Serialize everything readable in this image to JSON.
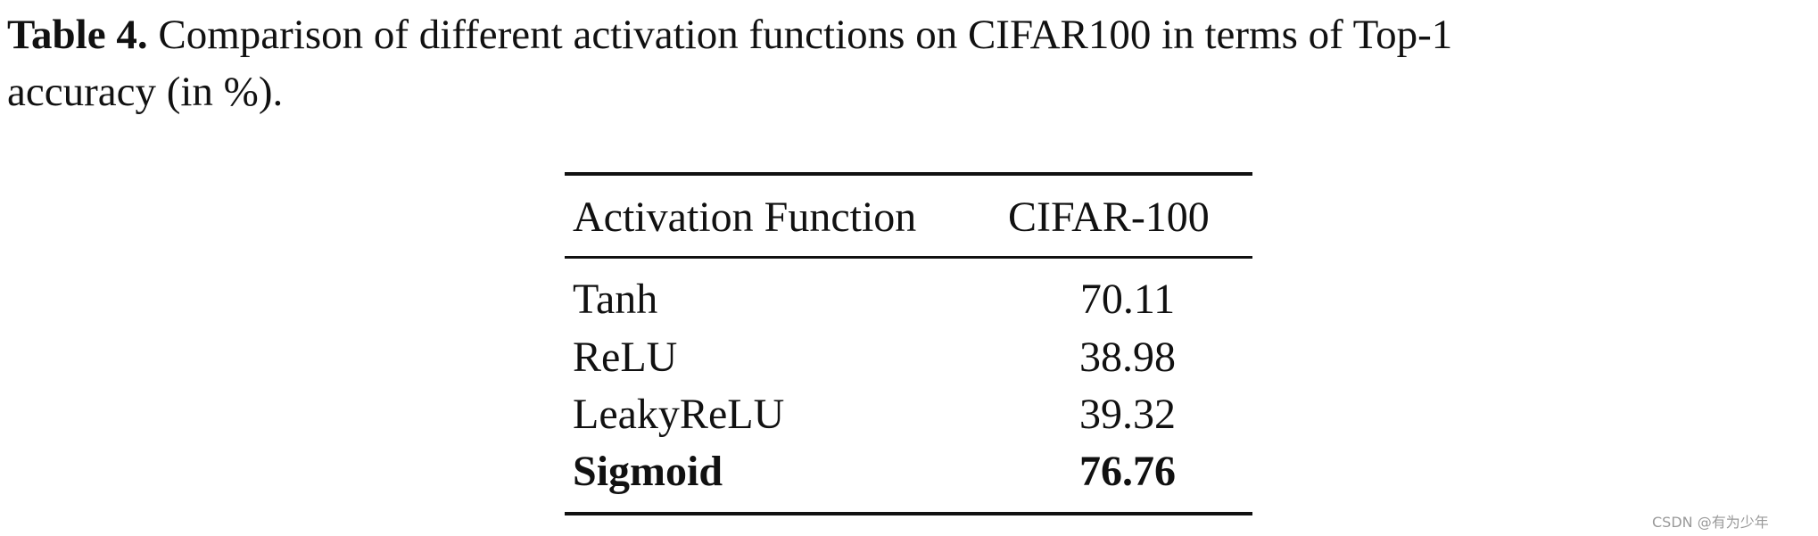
{
  "caption": {
    "label": "Table 4.",
    "lines": [
      "Comparison of different activation functions on CIFAR100 in terms of Top-1",
      "accuracy (in %)."
    ]
  },
  "table": {
    "header": [
      "Activation Function",
      "CIFAR-100"
    ],
    "rows": [
      [
        "Tanh",
        70.11
      ],
      [
        "ReLU",
        38.98
      ],
      [
        "LeakyReLU",
        39.32
      ],
      [
        "Sigmoid",
        76.76
      ]
    ]
  },
  "watermark": "CSDN @有为少年"
}
